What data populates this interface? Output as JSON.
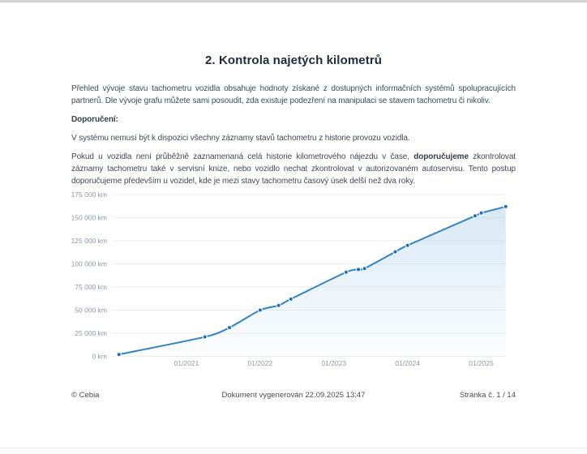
{
  "page": {
    "title": "2. Kontrola najetých kilometrů",
    "paragraph1": "Přehled vývoje stavu tachometru vozidla obsahuje hodnoty získané z dostupných informačních systémů spolupracujících partnerů. Dle vývoje grafu můžete sami posoudit, zda existuje podezření na manipulaci se stavem tachometru či nikoliv.",
    "recommendation_label": "Doporučení:",
    "paragraph2": "V systému nemusí být k dispozici všechny záznamy stavů tachometru z historie provozu vozidla.",
    "paragraph3_part1": "Pokud u vozidla není průběžně zaznamenaná celá historie kilometrového nájezdu v čase, ",
    "paragraph3_bold": "doporučujeme",
    "paragraph3_part2": " zkontrolovat záznamy tachometru také v servisní knize, nebo vozidlo nechat zkontrolovat v autorizovaném autoservisu. Tento postup doporučujeme především u vozidel, kde je mezi stavy tachometru časový úsek delší než dva roky."
  },
  "footer": {
    "copyright": "© Cebia",
    "generated": "Dokument vygenerován 22.09.2025 13:47",
    "page_number": "Stránka č. 1 / 14"
  },
  "chart_data": {
    "type": "line",
    "title": "",
    "xlabel": "",
    "ylabel": "",
    "ylim": [
      0,
      175000
    ],
    "grid": true,
    "legend": "none",
    "y_ticks": [
      "0 km",
      "25 000 km",
      "50 000 km",
      "75 000 km",
      "100 000 km",
      "125 000 km",
      "150 000 km",
      "175 000 km"
    ],
    "x_ticks": [
      "01/2021",
      "01/2022",
      "01/2023",
      "01/2024",
      "01/2025"
    ],
    "points": [
      {
        "date": "02/2020",
        "km": 2000
      },
      {
        "date": "04/2021",
        "km": 21000
      },
      {
        "date": "08/2021",
        "km": 31000
      },
      {
        "date": "01/2022",
        "km": 50000
      },
      {
        "date": "04/2022",
        "km": 55000
      },
      {
        "date": "06/2022",
        "km": 62000
      },
      {
        "date": "03/2023",
        "km": 91000
      },
      {
        "date": "05/2023",
        "km": 94000
      },
      {
        "date": "06/2023",
        "km": 95000
      },
      {
        "date": "11/2023",
        "km": 113000
      },
      {
        "date": "01/2024",
        "km": 120000
      },
      {
        "date": "12/2024",
        "km": 152000
      },
      {
        "date": "01/2025",
        "km": 155000
      },
      {
        "date": "05/2025",
        "km": 162000
      }
    ],
    "colors": {
      "line": "#2f82c5",
      "point": "#1a6db8",
      "point_ring": "#ffffff",
      "grid": "#ededed",
      "tick_text": "#8996a4",
      "fill_top": "rgba(88,158,212,0.24)",
      "fill_bottom": "rgba(88,158,212,0.02)"
    }
  }
}
